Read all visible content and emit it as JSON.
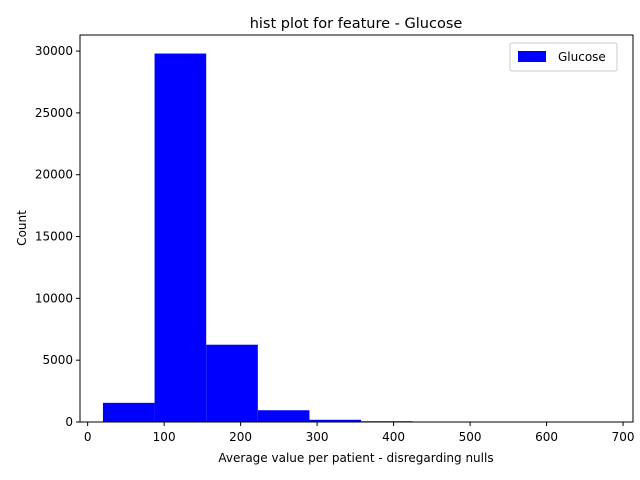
{
  "chart_data": {
    "type": "bar",
    "title": "hist plot for feature -  Glucose",
    "xlabel": "Average value per patient - disregarding nulls",
    "ylabel": "Count",
    "xlim": [
      -10,
      713
    ],
    "ylim": [
      0,
      31300
    ],
    "xticks": [
      0,
      100,
      200,
      300,
      400,
      500,
      600,
      700
    ],
    "yticks": [
      0,
      5000,
      10000,
      15000,
      20000,
      25000,
      30000
    ],
    "bin_edges": [
      20,
      87.5,
      155,
      222.5,
      290,
      357.5,
      425,
      492.5,
      560,
      627.5,
      695
    ],
    "series": [
      {
        "name": "Glucose",
        "color": "#0000ff",
        "values": [
          1550,
          29800,
          6250,
          950,
          180,
          60,
          20,
          10,
          5,
          3
        ]
      }
    ],
    "legend_position": "top-right",
    "grid": false
  }
}
